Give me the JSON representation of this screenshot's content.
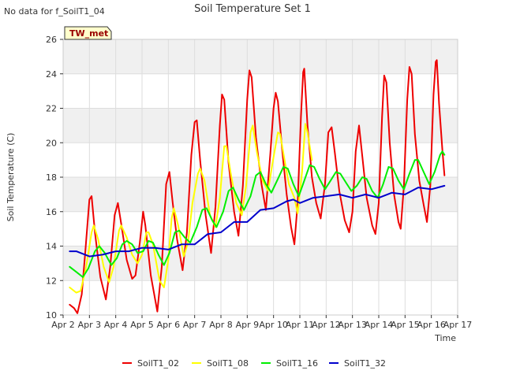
{
  "no_data_note": "No data for f_SoilT1_04",
  "badge": "TW_met",
  "colors": {
    "SoilT1_02": "#ee0000",
    "SoilT1_08": "#ffff00",
    "SoilT1_16": "#00ee00",
    "SoilT1_32": "#0000cc",
    "badge_bg": "#ffffcc",
    "badge_text": "#990000",
    "band": "#f0f0f0",
    "grid": "#dddddd"
  },
  "chart_data": {
    "type": "line",
    "title": "Soil Temperature Set 1",
    "xlabel": "Time",
    "ylabel": "Soil Temperature (C)",
    "xlim": [
      "Apr 2",
      "Apr 17"
    ],
    "ylim": [
      10,
      26
    ],
    "x_ticks": [
      "Apr 2",
      "Apr 3",
      "Apr 4",
      "Apr 5",
      "Apr 6",
      "Apr 7",
      "Apr 8",
      "Apr 9",
      "Apr 10",
      "Apr 11",
      "Apr 12",
      "Apr 13",
      "Apr 14",
      "Apr 15",
      "Apr 16",
      "Apr 17"
    ],
    "y_ticks": [
      10,
      12,
      14,
      16,
      18,
      20,
      22,
      24,
      26
    ],
    "grid": true,
    "legend_position": "bottom",
    "series": [
      {
        "name": "SoilT1_02",
        "points": [
          [
            "Apr 2 06:00",
            10.6
          ],
          [
            "Apr 2 10:00",
            10.4
          ],
          [
            "Apr 2 13:00",
            10.1
          ],
          [
            "Apr 2 17:00",
            11.2
          ],
          [
            "Apr 2 20:00",
            13.5
          ],
          [
            "Apr 3 00:00",
            16.7
          ],
          [
            "Apr 3 02:00",
            16.9
          ],
          [
            "Apr 3 05:00",
            14.8
          ],
          [
            "Apr 3 10:00",
            12.2
          ],
          [
            "Apr 3 15:00",
            10.9
          ],
          [
            "Apr 3 19:00",
            12.8
          ],
          [
            "Apr 3 23:00",
            15.8
          ],
          [
            "Apr 4 02:00",
            16.5
          ],
          [
            "Apr 4 05:00",
            15.3
          ],
          [
            "Apr 4 10:00",
            13.2
          ],
          [
            "Apr 4 15:00",
            12.1
          ],
          [
            "Apr 4 18:00",
            12.3
          ],
          [
            "Apr 4 22:00",
            14.2
          ],
          [
            "Apr 5 00:00",
            15.4
          ],
          [
            "Apr 5 01:00",
            16.0
          ],
          [
            "Apr 5 03:00",
            15.2
          ],
          [
            "Apr 5 08:00",
            12.3
          ],
          [
            "Apr 5 14:00",
            10.2
          ],
          [
            "Apr 5 18:00",
            12.8
          ],
          [
            "Apr 5 22:00",
            17.6
          ],
          [
            "Apr 6 01:00",
            18.3
          ],
          [
            "Apr 6 04:00",
            16.5
          ],
          [
            "Apr 6 08:00",
            14.4
          ],
          [
            "Apr 6 13:00",
            12.6
          ],
          [
            "Apr 6 17:00",
            14.8
          ],
          [
            "Apr 6 21:00",
            19.3
          ],
          [
            "Apr 7 00:00",
            21.2
          ],
          [
            "Apr 7 02:00",
            21.3
          ],
          [
            "Apr 7 05:00",
            19.0
          ],
          [
            "Apr 7 10:00",
            15.8
          ],
          [
            "Apr 7 15:00",
            13.6
          ],
          [
            "Apr 7 19:00",
            16.3
          ],
          [
            "Apr 7 23:00",
            21.0
          ],
          [
            "Apr 8 01:00",
            22.8
          ],
          [
            "Apr 8 03:00",
            22.5
          ],
          [
            "Apr 8 07:00",
            18.8
          ],
          [
            "Apr 8 12:00",
            16.0
          ],
          [
            "Apr 8 16:00",
            14.6
          ],
          [
            "Apr 8 20:00",
            17.5
          ],
          [
            "Apr 9 00:00",
            22.5
          ],
          [
            "Apr 9 02:00",
            24.2
          ],
          [
            "Apr 9 04:00",
            23.8
          ],
          [
            "Apr 9 08:00",
            20.3
          ],
          [
            "Apr 9 13:00",
            17.6
          ],
          [
            "Apr 9 17:00",
            16.1
          ],
          [
            "Apr 9 21:00",
            19.3
          ],
          [
            "Apr 10 00:00",
            22.0
          ],
          [
            "Apr 10 02:00",
            22.9
          ],
          [
            "Apr 10 04:00",
            22.4
          ],
          [
            "Apr 10 08:00",
            19.5
          ],
          [
            "Apr 10 12:00",
            17.0
          ],
          [
            "Apr 10 16:00",
            15.1
          ],
          [
            "Apr 10 19:00",
            14.1
          ],
          [
            "Apr 10 22:00",
            16.5
          ],
          [
            "Apr 11 01:00",
            21.5
          ],
          [
            "Apr 11 03:00",
            24.1
          ],
          [
            "Apr 11 04:00",
            24.3
          ],
          [
            "Apr 11 07:00",
            21.0
          ],
          [
            "Apr 11 11:00",
            18.0
          ],
          [
            "Apr 11 15:00",
            16.5
          ],
          [
            "Apr 11 19:00",
            15.6
          ],
          [
            "Apr 11 23:00",
            17.6
          ],
          [
            "Apr 12 02:00",
            20.6
          ],
          [
            "Apr 12 05:00",
            20.9
          ],
          [
            "Apr 12 08:00",
            19.4
          ],
          [
            "Apr 12 12:00",
            17.2
          ],
          [
            "Apr 12 17:00",
            15.5
          ],
          [
            "Apr 12 21:00",
            14.8
          ],
          [
            "Apr 13 00:00",
            16.0
          ],
          [
            "Apr 13 03:00",
            19.5
          ],
          [
            "Apr 13 06:00",
            21.0
          ],
          [
            "Apr 13 09:00",
            19.2
          ],
          [
            "Apr 13 13:00",
            16.8
          ],
          [
            "Apr 13 18:00",
            15.2
          ],
          [
            "Apr 13 21:00",
            14.7
          ],
          [
            "Apr 14 00:00",
            16.5
          ],
          [
            "Apr 14 03:00",
            21.5
          ],
          [
            "Apr 14 05:00",
            23.9
          ],
          [
            "Apr 14 07:00",
            23.5
          ],
          [
            "Apr 14 10:00",
            20.0
          ],
          [
            "Apr 14 14:00",
            17.0
          ],
          [
            "Apr 14 18:00",
            15.4
          ],
          [
            "Apr 14 20:00",
            15.0
          ],
          [
            "Apr 14 23:00",
            17.5
          ],
          [
            "Apr 15 02:00",
            22.5
          ],
          [
            "Apr 15 04:00",
            24.4
          ],
          [
            "Apr 15 06:00",
            24.0
          ],
          [
            "Apr 15 09:00",
            20.5
          ],
          [
            "Apr 15 13:00",
            17.8
          ],
          [
            "Apr 15 17:00",
            16.4
          ],
          [
            "Apr 15 20:00",
            15.4
          ],
          [
            "Apr 15 23:00",
            17.5
          ],
          [
            "Apr 16 02:00",
            22.8
          ],
          [
            "Apr 16 04:00",
            24.7
          ],
          [
            "Apr 16 05:00",
            24.8
          ],
          [
            "Apr 16 07:00",
            22.3
          ],
          [
            "Apr 16 10:00",
            19.6
          ],
          [
            "Apr 16 12:00",
            18.1
          ]
        ]
      },
      {
        "name": "SoilT1_08",
        "points": [
          [
            "Apr 2 06:00",
            11.6
          ],
          [
            "Apr 2 12:00",
            11.3
          ],
          [
            "Apr 2 16:00",
            11.4
          ],
          [
            "Apr 2 21:00",
            12.8
          ],
          [
            "Apr 3 02:00",
            14.8
          ],
          [
            "Apr 3 04:00",
            15.2
          ],
          [
            "Apr 3 08:00",
            14.4
          ],
          [
            "Apr 3 13:00",
            12.8
          ],
          [
            "Apr 3 18:00",
            11.9
          ],
          [
            "Apr 3 22:00",
            12.8
          ],
          [
            "Apr 4 03:00",
            14.9
          ],
          [
            "Apr 4 05:00",
            15.2
          ],
          [
            "Apr 4 10:00",
            14.5
          ],
          [
            "Apr 4 15:00",
            13.5
          ],
          [
            "Apr 4 20:00",
            13.0
          ],
          [
            "Apr 5 00:00",
            13.5
          ],
          [
            "Apr 5 04:00",
            14.8
          ],
          [
            "Apr 5 06:00",
            14.8
          ],
          [
            "Apr 5 10:00",
            14.1
          ],
          [
            "Apr 5 16:00",
            12.0
          ],
          [
            "Apr 5 20:00",
            11.6
          ],
          [
            "Apr 6 00:00",
            13.2
          ],
          [
            "Apr 6 03:00",
            15.6
          ],
          [
            "Apr 6 05:00",
            16.2
          ],
          [
            "Apr 6 09:00",
            15.2
          ],
          [
            "Apr 6 14:00",
            13.4
          ],
          [
            "Apr 6 18:00",
            14.2
          ],
          [
            "Apr 6 22:00",
            16.5
          ],
          [
            "Apr 7 03:00",
            18.2
          ],
          [
            "Apr 7 05:00",
            18.5
          ],
          [
            "Apr 7 09:00",
            17.8
          ],
          [
            "Apr 7 14:00",
            15.8
          ],
          [
            "Apr 7 19:00",
            15.1
          ],
          [
            "Apr 7 23:00",
            16.8
          ],
          [
            "Apr 8 03:00",
            19.8
          ],
          [
            "Apr 8 05:00",
            19.8
          ],
          [
            "Apr 8 09:00",
            18.2
          ],
          [
            "Apr 8 14:00",
            16.5
          ],
          [
            "Apr 8 19:00",
            15.8
          ],
          [
            "Apr 8 23:00",
            17.5
          ],
          [
            "Apr 9 03:00",
            20.6
          ],
          [
            "Apr 9 05:00",
            21.0
          ],
          [
            "Apr 9 09:00",
            19.4
          ],
          [
            "Apr 9 14:00",
            17.8
          ],
          [
            "Apr 9 19:00",
            17.2
          ],
          [
            "Apr 9 23:00",
            18.8
          ],
          [
            "Apr 10 04:00",
            20.6
          ],
          [
            "Apr 10 06:00",
            20.5
          ],
          [
            "Apr 10 10:00",
            19.0
          ],
          [
            "Apr 10 14:00",
            17.6
          ],
          [
            "Apr 10 19:00",
            16.8
          ],
          [
            "Apr 10 22:00",
            15.9
          ],
          [
            "Apr 11 02:00",
            18.3
          ],
          [
            "Apr 11 05:00",
            21.1
          ],
          [
            "Apr 11 07:00",
            20.6
          ],
          [
            "Apr 11 11:00",
            19.0
          ]
        ]
      },
      {
        "name": "SoilT1_16",
        "points": [
          [
            "Apr 2 06:00",
            12.8
          ],
          [
            "Apr 2 12:00",
            12.5
          ],
          [
            "Apr 2 18:00",
            12.2
          ],
          [
            "Apr 2 23:00",
            12.7
          ],
          [
            "Apr 3 05:00",
            13.7
          ],
          [
            "Apr 3 09:00",
            14.0
          ],
          [
            "Apr 3 14:00",
            13.6
          ],
          [
            "Apr 3 20:00",
            12.9
          ],
          [
            "Apr 4 01:00",
            13.3
          ],
          [
            "Apr 4 06:00",
            14.1
          ],
          [
            "Apr 4 10:00",
            14.3
          ],
          [
            "Apr 4 15:00",
            14.1
          ],
          [
            "Apr 4 20:00",
            13.6
          ],
          [
            "Apr 5 01:00",
            13.7
          ],
          [
            "Apr 5 06:00",
            14.3
          ],
          [
            "Apr 5 10:00",
            14.2
          ],
          [
            "Apr 5 15:00",
            13.5
          ],
          [
            "Apr 5 20:00",
            12.9
          ],
          [
            "Apr 6 01:00",
            13.6
          ],
          [
            "Apr 6 06:00",
            14.8
          ],
          [
            "Apr 6 10:00",
            14.9
          ],
          [
            "Apr 6 15:00",
            14.5
          ],
          [
            "Apr 6 20:00",
            14.2
          ],
          [
            "Apr 7 02:00",
            15.1
          ],
          [
            "Apr 7 07:00",
            16.1
          ],
          [
            "Apr 7 11:00",
            16.2
          ],
          [
            "Apr 7 16:00",
            15.5
          ],
          [
            "Apr 7 20:00",
            15.1
          ],
          [
            "Apr 8 02:00",
            16.0
          ],
          [
            "Apr 8 07:00",
            17.2
          ],
          [
            "Apr 8 11:00",
            17.4
          ],
          [
            "Apr 8 16:00",
            16.7
          ],
          [
            "Apr 8 21:00",
            16.1
          ],
          [
            "Apr 9 03:00",
            16.9
          ],
          [
            "Apr 9 08:00",
            18.1
          ],
          [
            "Apr 9 12:00",
            18.3
          ],
          [
            "Apr 9 17:00",
            17.6
          ],
          [
            "Apr 9 22:00",
            17.1
          ],
          [
            "Apr 10 04:00",
            17.9
          ],
          [
            "Apr 10 09:00",
            18.6
          ],
          [
            "Apr 10 13:00",
            18.5
          ],
          [
            "Apr 10 18:00",
            17.6
          ],
          [
            "Apr 10 23:00",
            16.9
          ],
          [
            "Apr 11 04:00",
            17.8
          ],
          [
            "Apr 11 09:00",
            18.7
          ],
          [
            "Apr 11 13:00",
            18.6
          ],
          [
            "Apr 11 18:00",
            17.9
          ],
          [
            "Apr 11 23:00",
            17.3
          ],
          [
            "Apr 12 04:00",
            17.8
          ],
          [
            "Apr 12 09:00",
            18.3
          ],
          [
            "Apr 12 13:00",
            18.2
          ],
          [
            "Apr 12 18:00",
            17.7
          ],
          [
            "Apr 12 23:00",
            17.2
          ],
          [
            "Apr 13 04:00",
            17.5
          ],
          [
            "Apr 13 09:00",
            18.0
          ],
          [
            "Apr 13 13:00",
            17.9
          ],
          [
            "Apr 13 18:00",
            17.2
          ],
          [
            "Apr 13 23:00",
            16.8
          ],
          [
            "Apr 14 04:00",
            17.6
          ],
          [
            "Apr 14 09:00",
            18.6
          ],
          [
            "Apr 14 13:00",
            18.5
          ],
          [
            "Apr 14 18:00",
            17.8
          ],
          [
            "Apr 14 23:00",
            17.3
          ],
          [
            "Apr 15 04:00",
            18.2
          ],
          [
            "Apr 15 09:00",
            19.0
          ],
          [
            "Apr 15 12:00",
            19.0
          ],
          [
            "Apr 15 17:00",
            18.3
          ],
          [
            "Apr 15 22:00",
            17.6
          ],
          [
            "Apr 16 03:00",
            18.3
          ],
          [
            "Apr 16 08:00",
            19.3
          ],
          [
            "Apr 16 10:00",
            19.5
          ],
          [
            "Apr 16 12:00",
            19.3
          ]
        ]
      },
      {
        "name": "SoilT1_32",
        "points": [
          [
            "Apr 2 06:00",
            13.7
          ],
          [
            "Apr 2 12:00",
            13.7
          ],
          [
            "Apr 3 00:00",
            13.4
          ],
          [
            "Apr 3 12:00",
            13.5
          ],
          [
            "Apr 4 00:00",
            13.7
          ],
          [
            "Apr 4 12:00",
            13.7
          ],
          [
            "Apr 5 00:00",
            13.9
          ],
          [
            "Apr 5 12:00",
            13.9
          ],
          [
            "Apr 6 00:00",
            13.8
          ],
          [
            "Apr 6 12:00",
            14.1
          ],
          [
            "Apr 7 00:00",
            14.1
          ],
          [
            "Apr 7 12:00",
            14.7
          ],
          [
            "Apr 8 00:00",
            14.8
          ],
          [
            "Apr 8 12:00",
            15.4
          ],
          [
            "Apr 9 00:00",
            15.4
          ],
          [
            "Apr 9 12:00",
            16.1
          ],
          [
            "Apr 10 00:00",
            16.2
          ],
          [
            "Apr 10 12:00",
            16.6
          ],
          [
            "Apr 10 18:00",
            16.7
          ],
          [
            "Apr 11 00:00",
            16.5
          ],
          [
            "Apr 11 12:00",
            16.8
          ],
          [
            "Apr 12 00:00",
            16.9
          ],
          [
            "Apr 12 12:00",
            17.0
          ],
          [
            "Apr 13 00:00",
            16.8
          ],
          [
            "Apr 13 12:00",
            17.0
          ],
          [
            "Apr 14 00:00",
            16.8
          ],
          [
            "Apr 14 12:00",
            17.1
          ],
          [
            "Apr 15 00:00",
            17.0
          ],
          [
            "Apr 15 12:00",
            17.4
          ],
          [
            "Apr 16 00:00",
            17.3
          ],
          [
            "Apr 16 06:00",
            17.4
          ],
          [
            "Apr 16 12:00",
            17.5
          ]
        ]
      }
    ]
  }
}
